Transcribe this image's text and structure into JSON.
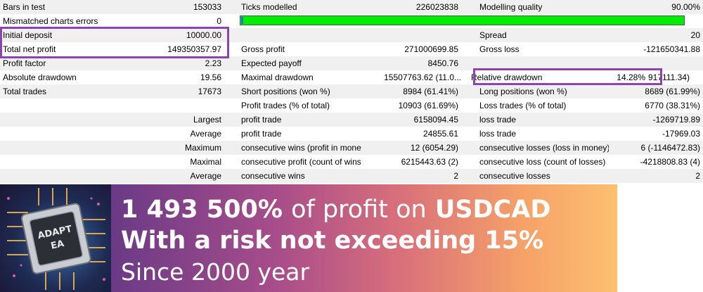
{
  "rows": [
    {
      "c1": "Bars in test",
      "c2": "153033",
      "c3": "Ticks modelled",
      "c4": "226023838",
      "c5": "Modelling quality",
      "c6": "90.00%"
    },
    {
      "c1": "Mismatched charts errors",
      "c2": "0"
    },
    {
      "c1": "Initial deposit",
      "c2": "10000.00",
      "c3": "",
      "c4": "",
      "c5": "Spread",
      "c6": "20"
    },
    {
      "c1": "Total net profit",
      "c2": "149350357.97",
      "c3": "Gross profit",
      "c4": "271000699.85",
      "c5": "Gross loss",
      "c6": "-121650341.88"
    },
    {
      "c1": "Profit factor",
      "c2": "2.23",
      "c3": "Expected payoff",
      "c4": "8450.76",
      "c5": "",
      "c6": ""
    },
    {
      "c1": "Absolute drawdown",
      "c2": "19.56",
      "c3": "Maximal drawdown",
      "c4": "15507763.62 (11.0...",
      "c5": "Relative drawdown",
      "c6": "14.28%"
    },
    {
      "c1": "Total trades",
      "c2": "17673",
      "c3": "Short positions (won %)",
      "c4": "8984 (61.41%)",
      "c5": "Long positions (won %)",
      "c6": "8689 (61.99%)"
    },
    {
      "c1": "",
      "c2": "",
      "c3": "Profit trades (% of total)",
      "c4": "10903 (61.69%)",
      "c5": "Loss trades (% of total)",
      "c6": "6770 (38.31%)"
    },
    {
      "c1": "",
      "c2": "Largest",
      "c3": "profit trade",
      "c4": "6158094.45",
      "c5": "loss trade",
      "c6": "-1269719.89"
    },
    {
      "c1": "",
      "c2": "Average",
      "c3": "profit trade",
      "c4": "24855.61",
      "c5": "loss trade",
      "c6": "-17969.03"
    },
    {
      "c1": "",
      "c2": "Maximum",
      "c3": "consecutive wins (profit in money)",
      "c4": "12 (6054.29)",
      "c5": "consecutive losses (loss in money)",
      "c6": "6 (-1146472.83)"
    },
    {
      "c1": "",
      "c2": "Maximal",
      "c3": "consecutive profit (count of wins)",
      "c4": "6215443.63 (2)",
      "c5": "consecutive loss (count of losses)",
      "c6": "-4218808.83 (4)"
    },
    {
      "c1": "",
      "c2": "Average",
      "c3": "consecutive wins",
      "c4": "2",
      "c5": "consecutive losses",
      "c6": "2"
    }
  ],
  "overflow_text": "917111.34)",
  "modelling_quality_percent": 90,
  "colors": {
    "highlight": "#8e44ad",
    "bar": "#00ee00",
    "row_alt": "#f0f0f0"
  },
  "banner": {
    "chip_label": "ADAPT EA",
    "line1_bold": "1 493 500%",
    "line1_light": "of profit on",
    "line1_pair": "USDCAD",
    "line2": "With a risk not exceeding 15%",
    "line3": "Since 2000 year"
  }
}
